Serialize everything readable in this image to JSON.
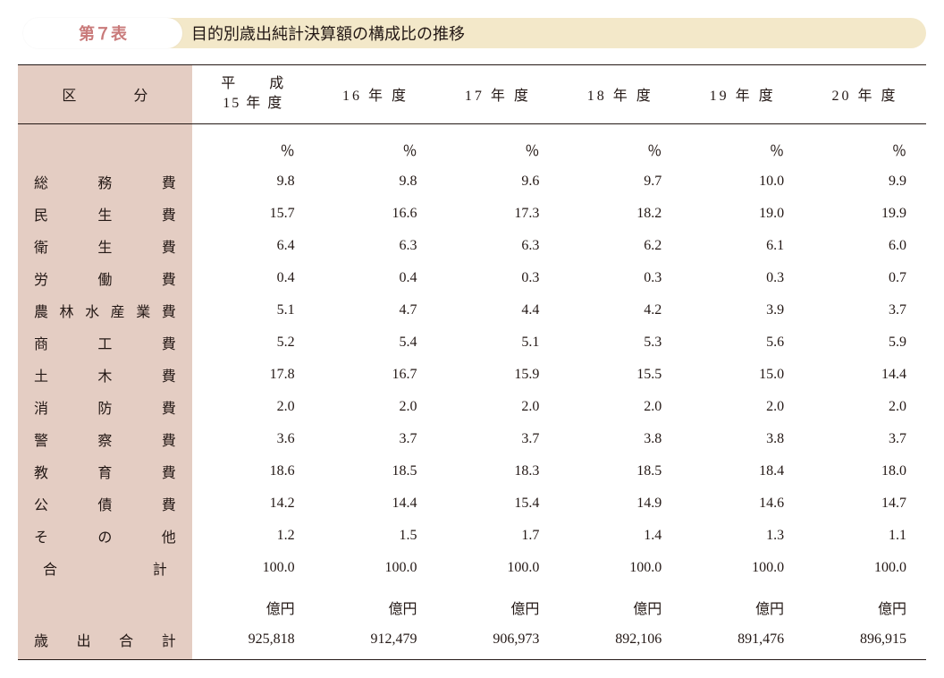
{
  "colors": {
    "tab_text": "#c97a7a",
    "banner_bg": "#f3e8c9",
    "rowhead_bg": "#e4cdc3",
    "text": "#231815",
    "rule": "#231815"
  },
  "typography": {
    "font_family": "Hiragino Mincho ProN",
    "base_size_pt": 12,
    "header_size_pt": 13.5
  },
  "header": {
    "tab_label": "第７表",
    "title": "目的別歳出純計決算額の構成比の推移"
  },
  "table": {
    "category_header": "区　　　　分",
    "year_header_first_line1": "平　　成",
    "year_header_first_line2": "15 年 度",
    "year_headers_rest": [
      "16 年 度",
      "17 年 度",
      "18 年 度",
      "19 年 度",
      "20 年 度"
    ],
    "percent_label": "％",
    "yen_label": "億円",
    "rows": [
      {
        "label": "総務費",
        "values": [
          "9.8",
          "9.8",
          "9.6",
          "9.7",
          "10.0",
          "9.9"
        ]
      },
      {
        "label": "民生費",
        "values": [
          "15.7",
          "16.6",
          "17.3",
          "18.2",
          "19.0",
          "19.9"
        ]
      },
      {
        "label": "衛生費",
        "values": [
          "6.4",
          "6.3",
          "6.3",
          "6.2",
          "6.1",
          "6.0"
        ]
      },
      {
        "label": "労働費",
        "values": [
          "0.4",
          "0.4",
          "0.3",
          "0.3",
          "0.3",
          "0.7"
        ]
      },
      {
        "label": "農林水産業費",
        "values": [
          "5.1",
          "4.7",
          "4.4",
          "4.2",
          "3.9",
          "3.7"
        ]
      },
      {
        "label": "商工費",
        "values": [
          "5.2",
          "5.4",
          "5.1",
          "5.3",
          "5.6",
          "5.9"
        ]
      },
      {
        "label": "土木費",
        "values": [
          "17.8",
          "16.7",
          "15.9",
          "15.5",
          "15.0",
          "14.4"
        ]
      },
      {
        "label": "消防費",
        "values": [
          "2.0",
          "2.0",
          "2.0",
          "2.0",
          "2.0",
          "2.0"
        ]
      },
      {
        "label": "警察費",
        "values": [
          "3.6",
          "3.7",
          "3.7",
          "3.8",
          "3.8",
          "3.7"
        ]
      },
      {
        "label": "教育費",
        "values": [
          "18.6",
          "18.5",
          "18.3",
          "18.5",
          "18.4",
          "18.0"
        ]
      },
      {
        "label": "公債費",
        "values": [
          "14.2",
          "14.4",
          "15.4",
          "14.9",
          "14.6",
          "14.7"
        ]
      },
      {
        "label": "その他",
        "values": [
          "1.2",
          "1.5",
          "1.7",
          "1.4",
          "1.3",
          "1.1"
        ]
      }
    ],
    "total_row": {
      "label": "合計",
      "values": [
        "100.0",
        "100.0",
        "100.0",
        "100.0",
        "100.0",
        "100.0"
      ]
    },
    "amount_row": {
      "label": "歳出合計",
      "values": [
        "925,818",
        "912,479",
        "906,973",
        "892,106",
        "891,476",
        "896,915"
      ]
    }
  }
}
